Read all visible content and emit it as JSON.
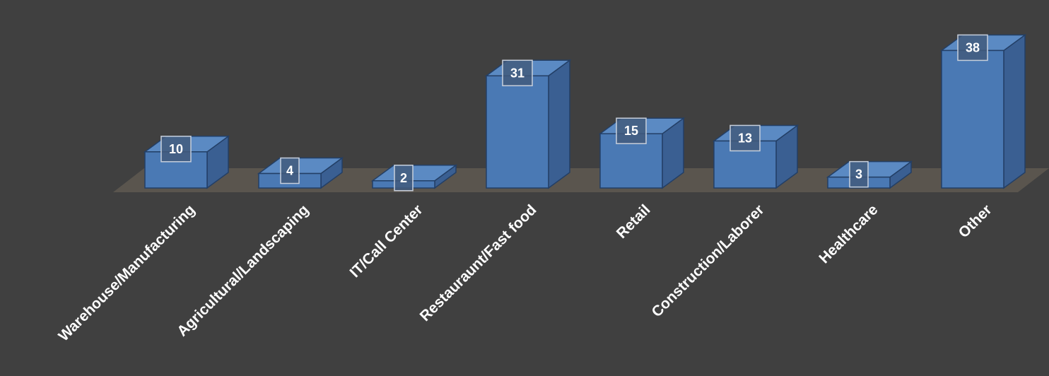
{
  "chart_data": {
    "type": "bar",
    "style": "3d-column",
    "categories": [
      "Warehouse/Manufacturing",
      "Agricultural/Landscaping",
      "IT/Call Center",
      "Restauraunt/Fast food",
      "Retail",
      "Construction/Laborer",
      "Healthcare",
      "Other"
    ],
    "values": [
      10,
      4,
      2,
      31,
      15,
      13,
      3,
      38
    ],
    "data_labels": [
      "10",
      "4",
      "2",
      "31",
      "15",
      "13",
      "3",
      "38"
    ],
    "ylim": [
      0,
      38
    ],
    "grid": false,
    "legend": "none",
    "colors": {
      "background": "#404040",
      "floor": "#5a554e",
      "bar_front": "#4a79b4",
      "bar_side": "#3a5f92",
      "bar_top": "#5b8ac3",
      "bar_edge": "#233f66",
      "label_box_fill": "#425a7c",
      "label_box_stroke": "#c7cfdb",
      "text": "#ffffff"
    }
  }
}
